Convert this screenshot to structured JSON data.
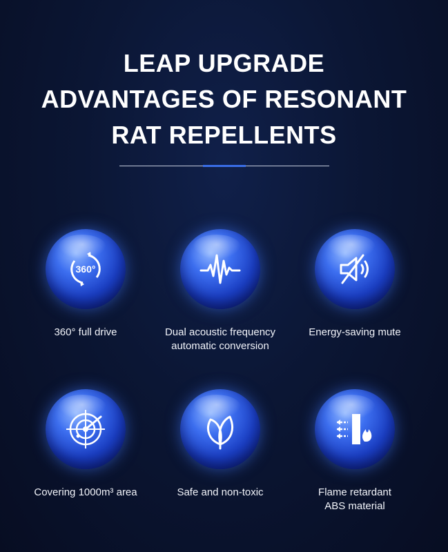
{
  "header": {
    "title_lines": [
      "LEAP UPGRADE",
      "ADVANTAGES OF RESONANT",
      "RAT REPELLENTS"
    ]
  },
  "features": [
    {
      "icon": "rotate-360-icon",
      "icon_text": "360°",
      "label_lines": [
        "360° full drive"
      ]
    },
    {
      "icon": "sound-wave-icon",
      "label_lines": [
        "Dual acoustic frequency",
        "automatic conversion"
      ]
    },
    {
      "icon": "mute-speaker-icon",
      "label_lines": [
        "Energy-saving mute"
      ]
    },
    {
      "icon": "radar-icon",
      "label_lines": [
        "Covering 1000m³ area"
      ]
    },
    {
      "icon": "leaf-icon",
      "label_lines": [
        "Safe and non-toxic"
      ]
    },
    {
      "icon": "flame-retardant-icon",
      "label_lines": [
        "Flame retardant",
        "ABS material"
      ]
    }
  ],
  "colors": {
    "accent": "#3a6ee8",
    "orb": "#1b3fc4",
    "background": "#0b1634"
  }
}
